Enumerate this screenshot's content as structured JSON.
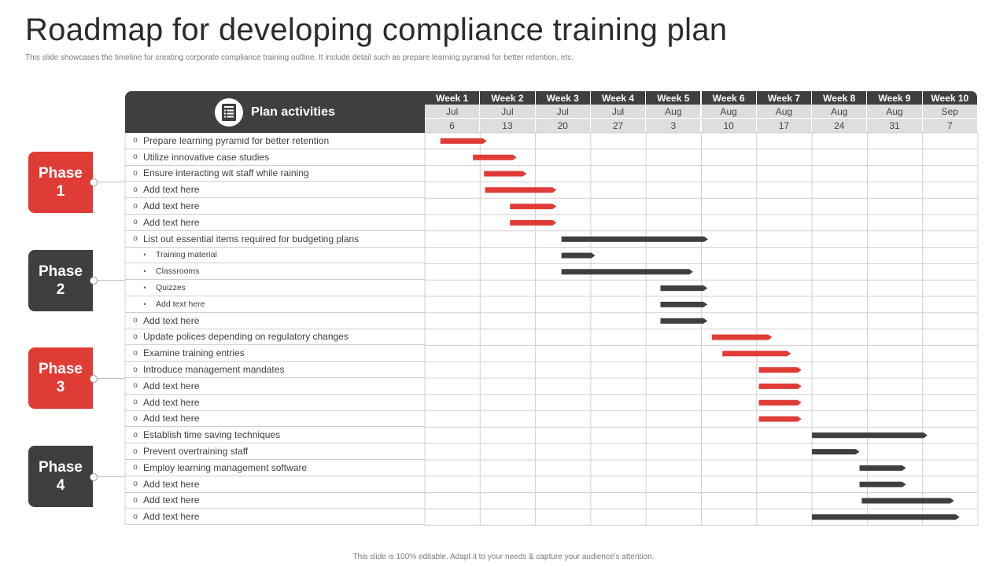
{
  "title": "Roadmap for developing compliance training plan",
  "subtitle": "This slide showcases the timeline  for creating corporate compliance training outline.  It include detail such as prepare learning pyramid for better retention, etc.",
  "footer": "This slide is 100% editable.  Adapt it to your needs & capture your audience’s attention.",
  "header": {
    "label": "Plan activities",
    "icon": "document-icon"
  },
  "colors": {
    "red": "#e03c36",
    "dark": "#3f3f3f",
    "grid": "#d0d0d0"
  },
  "weeks": [
    {
      "label": "Week 1",
      "month": "Jul",
      "day": "6"
    },
    {
      "label": "Week 2",
      "month": "Jul",
      "day": "13"
    },
    {
      "label": "Week 3",
      "month": "Jul",
      "day": "20"
    },
    {
      "label": "Week 4",
      "month": "Jul",
      "day": "27"
    },
    {
      "label": "Week 5",
      "month": "Aug",
      "day": "3"
    },
    {
      "label": "Week 6",
      "month": "Aug",
      "day": "10"
    },
    {
      "label": "Week 7",
      "month": "Aug",
      "day": "17"
    },
    {
      "label": "Week 8",
      "month": "Aug",
      "day": "24"
    },
    {
      "label": "Week 9",
      "month": "Aug",
      "day": "31"
    },
    {
      "label": "Week 10",
      "month": "Sep",
      "day": "7"
    }
  ],
  "phases": [
    {
      "label": "Phase\n1",
      "color": "red"
    },
    {
      "label": "Phase\n2",
      "color": "dark"
    },
    {
      "label": "Phase\n3",
      "color": "red"
    },
    {
      "label": "Phase\n4",
      "color": "dark"
    }
  ],
  "activities": [
    {
      "text": "Prepare learning pyramid for better retention",
      "marker": "o",
      "level": 0,
      "phase": 1,
      "start": 0.28,
      "end": 1.12
    },
    {
      "text": "Utilize innovative case studies",
      "marker": "o",
      "level": 0,
      "phase": 1,
      "start": 0.87,
      "end": 1.66
    },
    {
      "text": "Ensure interacting wit staff while raining",
      "marker": "o",
      "level": 0,
      "phase": 1,
      "start": 1.07,
      "end": 1.84
    },
    {
      "text": "Add text here",
      "marker": "o",
      "level": 0,
      "phase": 1,
      "start": 1.09,
      "end": 2.38
    },
    {
      "text": "Add text here",
      "marker": "o",
      "level": 0,
      "phase": 1,
      "start": 1.54,
      "end": 2.38
    },
    {
      "text": "Add text here",
      "marker": "o",
      "level": 0,
      "phase": 1,
      "start": 1.54,
      "end": 2.38
    },
    {
      "text": "List out essential items required for budgeting plans",
      "marker": "o",
      "level": 0,
      "phase": 2,
      "start": 2.47,
      "end": 5.12
    },
    {
      "text": "Training material",
      "marker": "•",
      "level": 1,
      "phase": 2,
      "start": 2.47,
      "end": 3.08
    },
    {
      "text": "Classrooms",
      "marker": "•",
      "level": 1,
      "phase": 2,
      "start": 2.47,
      "end": 4.85
    },
    {
      "text": "Quizzes",
      "marker": "•",
      "level": 1,
      "phase": 2,
      "start": 4.26,
      "end": 5.11
    },
    {
      "text": "Add text here",
      "marker": "•",
      "level": 1,
      "phase": 2,
      "start": 4.26,
      "end": 5.11
    },
    {
      "text": "Add text here",
      "marker": "o",
      "level": 0,
      "phase": 2,
      "start": 4.26,
      "end": 5.11
    },
    {
      "text": "Update polices depending on regulatory changes",
      "marker": "o",
      "level": 0,
      "phase": 3,
      "start": 5.19,
      "end": 6.28
    },
    {
      "text": "Examine training entries",
      "marker": "o",
      "level": 0,
      "phase": 3,
      "start": 5.38,
      "end": 6.62
    },
    {
      "text": "Introduce management mandates",
      "marker": "o",
      "level": 0,
      "phase": 3,
      "start": 6.04,
      "end": 6.81
    },
    {
      "text": "Add text here",
      "marker": "o",
      "level": 0,
      "phase": 3,
      "start": 6.04,
      "end": 6.81
    },
    {
      "text": "Add text here",
      "marker": "o",
      "level": 0,
      "phase": 3,
      "start": 6.04,
      "end": 6.81
    },
    {
      "text": "Add text here",
      "marker": "o",
      "level": 0,
      "phase": 3,
      "start": 6.04,
      "end": 6.81
    },
    {
      "text": "Establish time saving techniques",
      "marker": "o",
      "level": 0,
      "phase": 4,
      "start": 7.0,
      "end": 9.09
    },
    {
      "text": "Prevent overtraining staff",
      "marker": "o",
      "level": 0,
      "phase": 4,
      "start": 7.0,
      "end": 7.86
    },
    {
      "text": "Employ learning management software",
      "marker": "o",
      "level": 0,
      "phase": 4,
      "start": 7.86,
      "end": 8.7
    },
    {
      "text": "Add text here",
      "marker": "o",
      "level": 0,
      "phase": 4,
      "start": 7.86,
      "end": 8.7
    },
    {
      "text": "Add text here",
      "marker": "o",
      "level": 0,
      "phase": 4,
      "start": 7.9,
      "end": 9.57
    },
    {
      "text": "Add text here",
      "marker": "o",
      "level": 0,
      "phase": 4,
      "start": 7.0,
      "end": 9.67
    }
  ]
}
